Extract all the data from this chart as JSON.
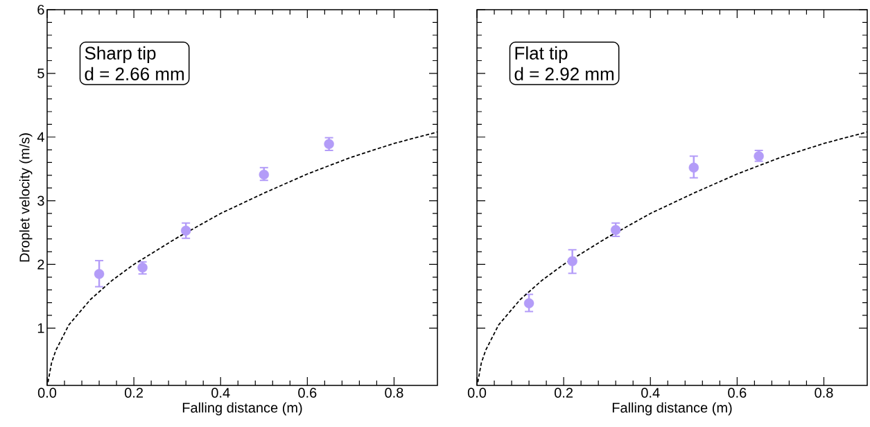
{
  "chart_data": [
    {
      "type": "scatter",
      "xlabel": "Falling distance (m)",
      "ylabel": "Droplet velocity (m/s)",
      "annotations": [
        "Sharp tip",
        "d = 2.66 mm"
      ],
      "xlim": [
        0,
        0.9
      ],
      "ylim": [
        0.1,
        6
      ],
      "xticks": [
        {
          "value": 0,
          "label": "0.0"
        },
        0.2,
        0.4,
        0.6,
        0.8
      ],
      "yticks": [
        1,
        2,
        3,
        4,
        5,
        6
      ],
      "series": [
        {
          "type": "scatter",
          "color": "#b39cf8",
          "marker": "circle",
          "x": [
            0.12,
            0.22,
            0.32,
            0.5,
            0.65
          ],
          "values": [
            1.85,
            1.95,
            2.53,
            3.41,
            3.89
          ],
          "errors": [
            [
              1.65,
              2.06
            ],
            [
              1.85,
              2.04
            ],
            [
              2.41,
              2.65
            ],
            [
              3.32,
              3.52
            ],
            [
              3.79,
              3.99
            ]
          ]
        },
        {
          "type": "line",
          "color": "#000000",
          "marker": "none",
          "line_style": "dashed",
          "x": [
            0.002,
            0.01,
            0.02,
            0.05,
            0.1,
            0.15,
            0.2,
            0.3,
            0.4,
            0.5,
            0.6,
            0.7,
            0.8,
            0.9
          ],
          "values": [
            0.15,
            0.45,
            0.65,
            1.05,
            1.45,
            1.75,
            2.0,
            2.42,
            2.8,
            3.12,
            3.42,
            3.68,
            3.9,
            4.08
          ]
        }
      ]
    },
    {
      "type": "scatter",
      "xlabel": "Falling distance (m)",
      "annotations": [
        "Flat tip",
        "d = 2.92 mm"
      ],
      "tick_labels": "x",
      "xlim": [
        0,
        0.9
      ],
      "ylim": [
        0.1,
        6
      ],
      "xticks": [
        {
          "value": 0,
          "label": "0.0"
        },
        0.2,
        0.4,
        0.6,
        0.8
      ],
      "yticks": [
        1,
        2,
        3,
        4,
        5,
        6
      ],
      "series": [
        {
          "type": "scatter",
          "color": "#b39cf8",
          "marker": "circle",
          "x": [
            0.12,
            0.22,
            0.32,
            0.5,
            0.65
          ],
          "values": [
            1.39,
            2.05,
            2.54,
            3.52,
            3.7
          ],
          "errors": [
            [
              1.26,
              1.53
            ],
            [
              1.86,
              2.23
            ],
            [
              2.44,
              2.65
            ],
            [
              3.36,
              3.7
            ],
            [
              3.62,
              3.79
            ]
          ]
        },
        {
          "type": "line",
          "color": "#000000",
          "marker": "none",
          "line_style": "dashed",
          "x": [
            0.002,
            0.01,
            0.02,
            0.05,
            0.1,
            0.15,
            0.2,
            0.3,
            0.4,
            0.5,
            0.6,
            0.7,
            0.8,
            0.9
          ],
          "values": [
            0.15,
            0.45,
            0.65,
            1.05,
            1.45,
            1.75,
            2.0,
            2.42,
            2.8,
            3.12,
            3.42,
            3.68,
            3.9,
            4.08
          ]
        }
      ]
    }
  ]
}
